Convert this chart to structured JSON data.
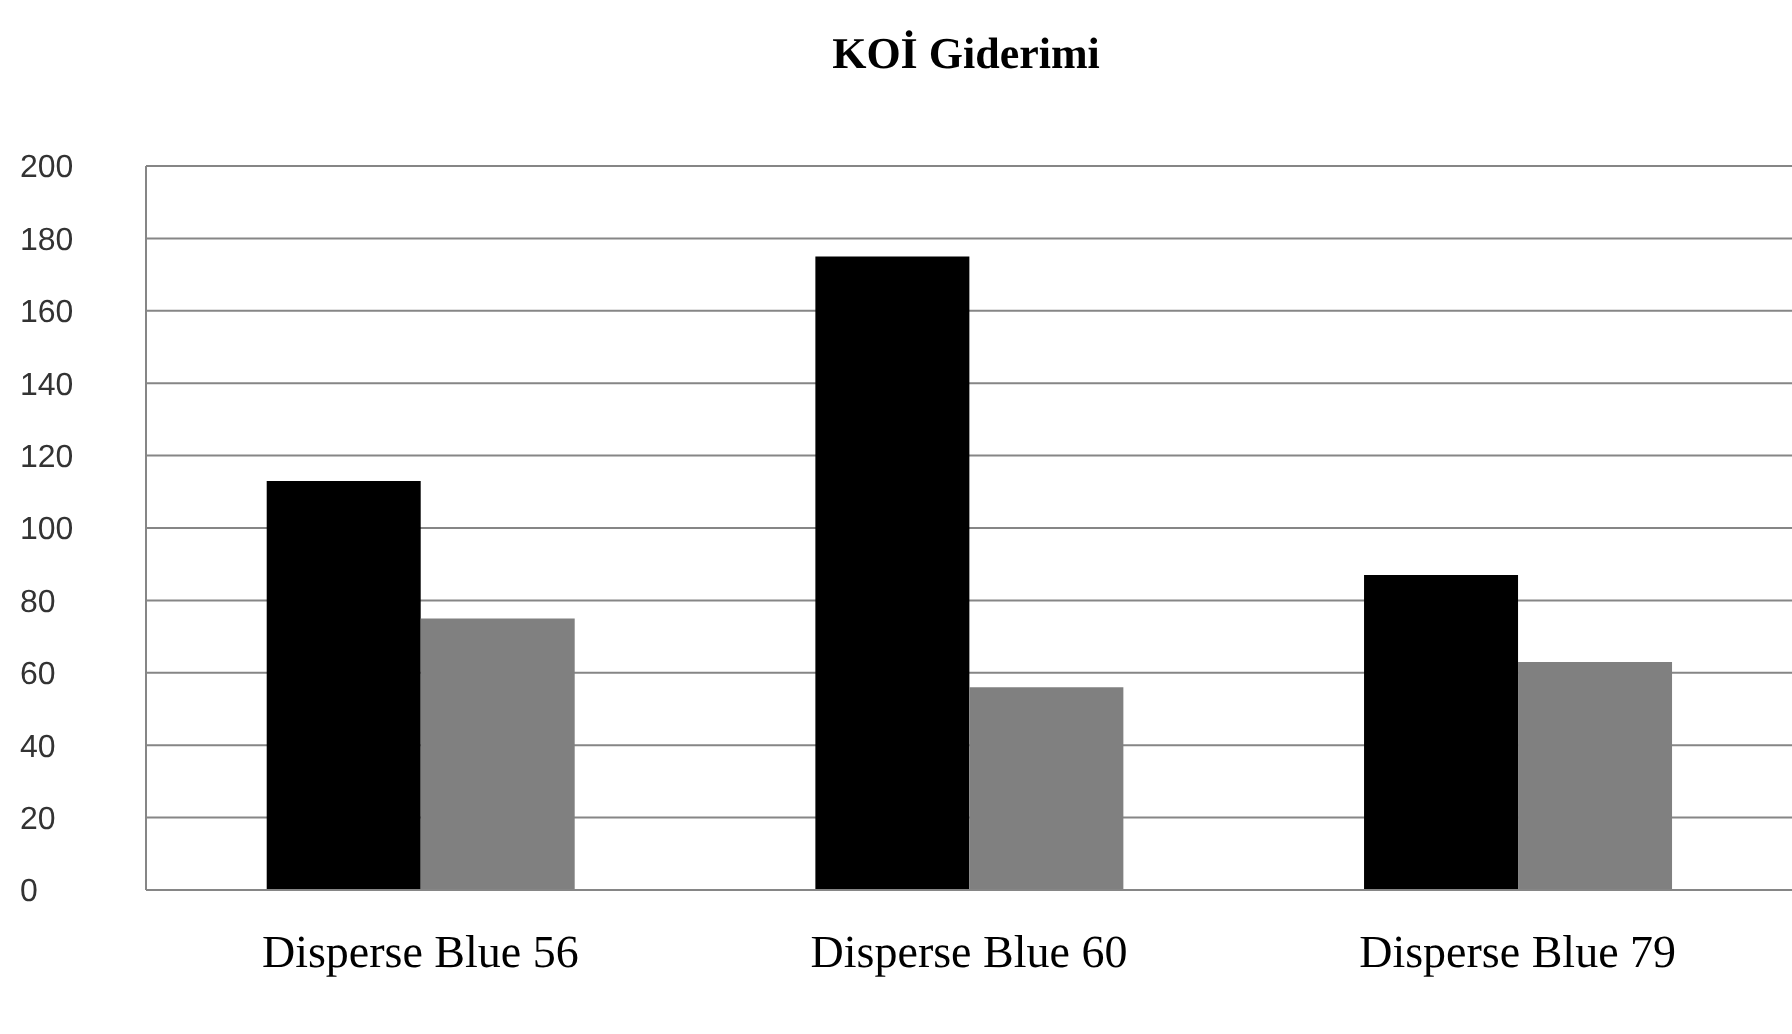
{
  "chart_data": {
    "type": "bar",
    "title": "KOİ Giderimi",
    "categories": [
      "Disperse Blue 56",
      "Disperse Blue 60",
      "Disperse Blue 79"
    ],
    "series": [
      {
        "color": "#000000",
        "values": [
          113,
          175,
          87
        ]
      },
      {
        "color": "#808080",
        "values": [
          75,
          56,
          63
        ]
      }
    ],
    "ylim": [
      0,
      200
    ],
    "yticks": [
      0,
      20,
      40,
      60,
      80,
      100,
      120,
      140,
      160,
      180,
      200
    ],
    "grid": "y",
    "legend": false
  }
}
